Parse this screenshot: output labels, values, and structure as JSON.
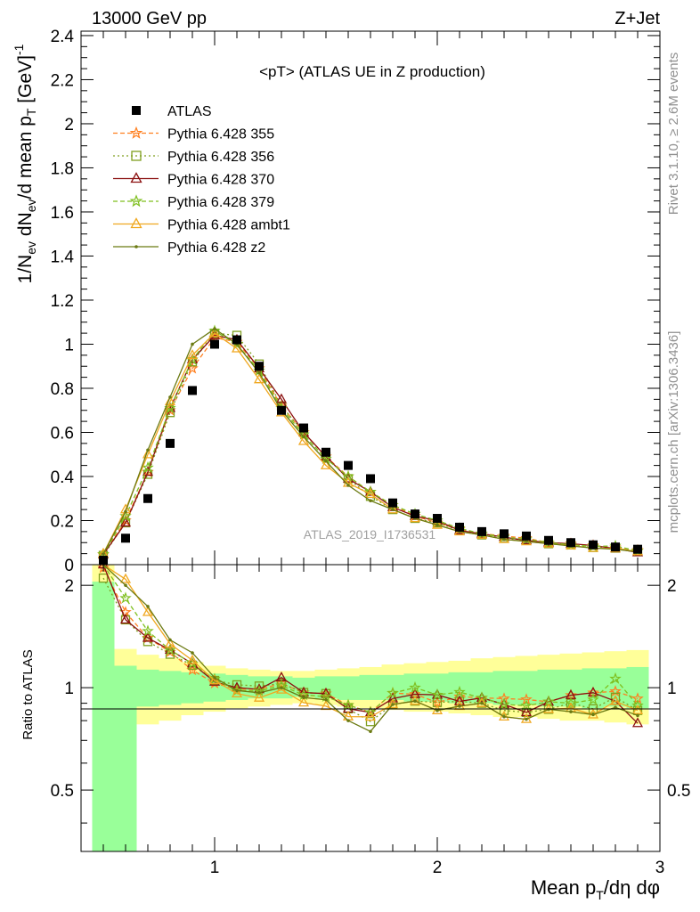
{
  "header": {
    "energy_label": "13000 GeV pp",
    "process_label": "Z+Jet"
  },
  "side_labels": {
    "rivet": "Rivet 3.1.10, ≥ 2.6M events",
    "source": "mcplots.cern.ch [arXiv:1306.3436]"
  },
  "chart_data": {
    "type": "line",
    "title": "<pT> (ATLAS UE in Z production)",
    "watermark": "ATLAS_2019_I1736531",
    "ylabel_main": "1/N_ev dN_ev/d mean p_T [GeV]^-1",
    "ylabel_ratio": "Ratio to ATLAS",
    "xlabel": "Mean p_T/dη dφ",
    "xlim": [
      0.4,
      3.0
    ],
    "ylim_main": [
      0,
      2.42
    ],
    "ylim_ratio": [
      0.33,
      2.3
    ],
    "x_ticks": [
      1,
      2,
      3
    ],
    "y_ticks_main": [
      0,
      0.2,
      0.4,
      0.6,
      0.8,
      1,
      1.2,
      1.4,
      1.6,
      1.8,
      2,
      2.2,
      2.4
    ],
    "y_ticks_ratio": [
      0.5,
      1,
      2
    ],
    "legend_position": "top-left",
    "x": [
      0.5,
      0.6,
      0.7,
      0.8,
      0.9,
      1.0,
      1.1,
      1.2,
      1.3,
      1.4,
      1.5,
      1.6,
      1.7,
      1.8,
      1.9,
      2.0,
      2.1,
      2.2,
      2.3,
      2.4,
      2.5,
      2.6,
      2.7,
      2.8,
      2.9
    ],
    "reference": {
      "name": "ATLAS",
      "color": "#000000",
      "values": [
        0.02,
        0.12,
        0.3,
        0.55,
        0.79,
        1.0,
        1.02,
        0.9,
        0.7,
        0.62,
        0.51,
        0.45,
        0.39,
        0.28,
        0.23,
        0.21,
        0.17,
        0.15,
        0.14,
        0.13,
        0.11,
        0.1,
        0.09,
        0.08,
        0.07
      ]
    },
    "band_x_edges": [
      0.45,
      0.55,
      0.65,
      0.75,
      0.85,
      0.95,
      1.05,
      1.15,
      1.25,
      1.35,
      1.45,
      1.55,
      1.65,
      1.75,
      1.85,
      1.95,
      2.05,
      2.15,
      2.25,
      2.35,
      2.45,
      2.55,
      2.65,
      2.75,
      2.85,
      2.95
    ],
    "band_stat_low": [
      0.33,
      0.33,
      0.88,
      0.89,
      0.9,
      0.91,
      0.92,
      0.93,
      0.93,
      0.94,
      0.93,
      0.92,
      0.92,
      0.92,
      0.91,
      0.91,
      0.9,
      0.9,
      0.89,
      0.89,
      0.88,
      0.88,
      0.87,
      0.88,
      0.87
    ],
    "band_stat_high": [
      2.05,
      1.16,
      1.13,
      1.12,
      1.11,
      1.1,
      1.09,
      1.08,
      1.08,
      1.07,
      1.08,
      1.08,
      1.09,
      1.09,
      1.1,
      1.1,
      1.11,
      1.11,
      1.12,
      1.12,
      1.13,
      1.13,
      1.14,
      1.14,
      1.15
    ],
    "band_total_low": [
      0.33,
      0.74,
      0.78,
      0.8,
      0.83,
      0.85,
      0.87,
      0.88,
      0.89,
      0.9,
      0.89,
      0.88,
      0.87,
      0.86,
      0.85,
      0.85,
      0.84,
      0.83,
      0.82,
      0.82,
      0.81,
      0.8,
      0.8,
      0.79,
      0.78
    ],
    "band_total_high": [
      2.3,
      1.3,
      1.25,
      1.22,
      1.19,
      1.16,
      1.14,
      1.13,
      1.12,
      1.12,
      1.13,
      1.14,
      1.15,
      1.17,
      1.18,
      1.19,
      1.2,
      1.22,
      1.23,
      1.24,
      1.25,
      1.26,
      1.27,
      1.28,
      1.29
    ],
    "band_colors": {
      "stat": "#99ff99",
      "total": "#ffff99"
    },
    "series": [
      {
        "name": "Pythia 6.428 355",
        "color": "#ff7f1f",
        "dash": "5,3",
        "marker": "star",
        "values": [
          0.045,
          0.2,
          0.42,
          0.7,
          0.89,
          1.03,
          1.01,
          0.89,
          0.72,
          0.6,
          0.49,
          0.4,
          0.33,
          0.27,
          0.22,
          0.19,
          0.16,
          0.14,
          0.13,
          0.12,
          0.1,
          0.095,
          0.087,
          0.078,
          0.065
        ]
      },
      {
        "name": "Pythia 6.428 356",
        "color": "#7f9f1f",
        "dash": "2,3",
        "marker": "square",
        "values": [
          0.042,
          0.19,
          0.41,
          0.69,
          0.92,
          1.05,
          1.04,
          0.91,
          0.72,
          0.6,
          0.49,
          0.39,
          0.31,
          0.25,
          0.21,
          0.19,
          0.155,
          0.135,
          0.12,
          0.11,
          0.095,
          0.09,
          0.078,
          0.075,
          0.06
        ]
      },
      {
        "name": "Pythia 6.428 370",
        "color": "#8b1010",
        "dash": "",
        "marker": "triangle",
        "values": [
          0.046,
          0.19,
          0.42,
          0.71,
          0.93,
          1.04,
          1.02,
          0.89,
          0.75,
          0.6,
          0.49,
          0.39,
          0.33,
          0.26,
          0.22,
          0.2,
          0.155,
          0.14,
          0.125,
          0.11,
          0.1,
          0.095,
          0.087,
          0.073,
          0.055
        ]
      },
      {
        "name": "Pythia 6.428 379",
        "color": "#7fbf1f",
        "dash": "5,3",
        "marker": "star",
        "values": [
          0.047,
          0.22,
          0.44,
          0.71,
          0.93,
          1.06,
          1.0,
          0.88,
          0.71,
          0.59,
          0.48,
          0.4,
          0.33,
          0.27,
          0.23,
          0.2,
          0.165,
          0.14,
          0.125,
          0.115,
          0.1,
          0.09,
          0.083,
          0.085,
          0.062
        ]
      },
      {
        "name": "Pythia 6.428 ambt1",
        "color": "#f0a820",
        "dash": "",
        "marker": "triangle",
        "values": [
          0.05,
          0.25,
          0.5,
          0.74,
          0.95,
          1.05,
          0.98,
          0.84,
          0.69,
          0.56,
          0.45,
          0.37,
          0.32,
          0.25,
          0.21,
          0.18,
          0.15,
          0.135,
          0.115,
          0.105,
          0.095,
          0.087,
          0.075,
          0.073,
          0.06
        ]
      },
      {
        "name": "Pythia 6.428 z2",
        "color": "#6b7a12",
        "dash": "",
        "marker": "dot",
        "values": [
          0.048,
          0.24,
          0.52,
          0.76,
          1.0,
          1.07,
          1.0,
          0.87,
          0.7,
          0.58,
          0.47,
          0.36,
          0.29,
          0.25,
          0.21,
          0.18,
          0.15,
          0.135,
          0.115,
          0.105,
          0.095,
          0.085,
          0.075,
          0.07,
          0.058
        ]
      }
    ]
  }
}
